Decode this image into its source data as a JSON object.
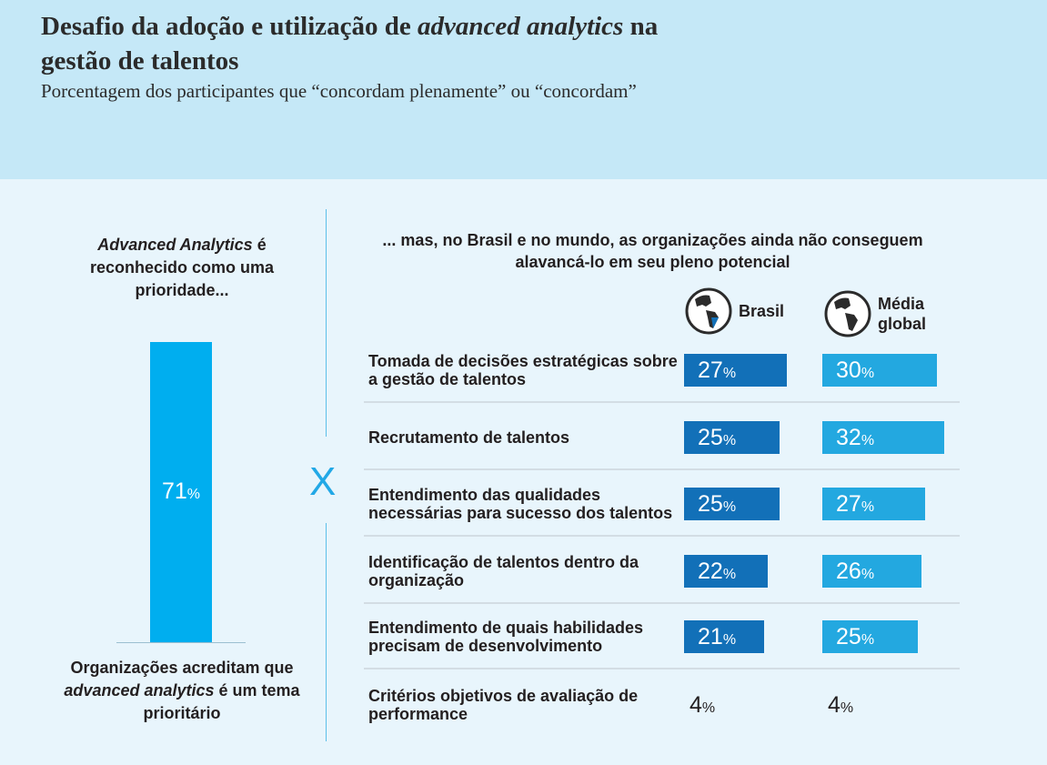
{
  "header": {
    "title_plain": "Desafio da adoção e utilização de ",
    "title_italic": "advanced analytics",
    "title_end": " na gestão de talentos",
    "subtitle": "Porcentagem dos participantes que “concordam plenamente” ou “concordam”"
  },
  "left": {
    "top_italic": "Advanced Analytics",
    "top_rest": " é reconhecido como uma prioridade...",
    "bottom_1": "Organizações acreditam que ",
    "bottom_italic": "advanced analytics",
    "bottom_2": " é um tema prioritário",
    "separator": "X"
  },
  "right": {
    "intro": "... mas, no Brasil e no mundo, as organizações ainda não conseguem alavancá-lo em seu pleno potencial"
  },
  "chart_data": [
    {
      "type": "bar",
      "categories": [
        "Organizações acreditam que advanced analytics é um tema prioritário"
      ],
      "values": [
        71
      ],
      "unit": "%",
      "color": "#00aeef"
    },
    {
      "type": "bar",
      "orientation": "horizontal",
      "unit": "%",
      "categories": [
        "Tomada de decisões estratégicas sobre a gestão de talentos",
        "Recrutamento de talentos",
        "Entendimento das qualidades necessárias para sucesso dos talentos",
        "Identificação de talentos dentro da organização",
        "Entendimento de quais habilidades precisam de desenvolvimento",
        "Critérios objetivos de avaliação de performance"
      ],
      "series": [
        {
          "name": "Brasil",
          "icon": "globe-south-america-icon",
          "color": "#1270b8",
          "values": [
            27,
            25,
            25,
            22,
            21,
            4
          ]
        },
        {
          "name": "Média global",
          "icon": "globe-icon",
          "color": "#23a8e0",
          "values": [
            30,
            32,
            27,
            26,
            25,
            4
          ]
        }
      ]
    }
  ]
}
